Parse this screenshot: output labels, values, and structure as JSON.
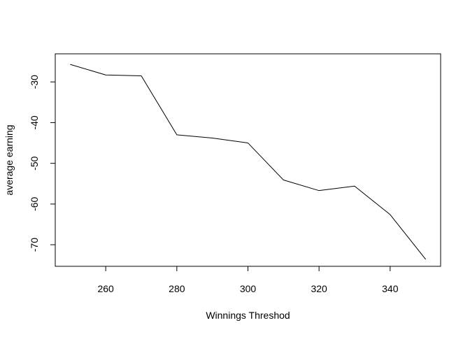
{
  "chart_data": {
    "type": "line",
    "title": "",
    "xlabel": "Winnings Threshod",
    "ylabel": "average earning",
    "x": [
      250,
      260,
      270,
      280,
      290,
      300,
      310,
      320,
      330,
      340,
      350
    ],
    "series": [
      {
        "values": [
          -25.7,
          -28.3,
          -28.5,
          -43.0,
          -43.8,
          -45.0,
          -54.1,
          -56.7,
          -55.6,
          -62.6,
          -73.6
        ]
      }
    ],
    "xlim": [
      245.8,
      354.2
    ],
    "ylim": [
      -75.3,
      -23.1
    ],
    "x_ticks": [
      260,
      280,
      300,
      320,
      340
    ],
    "y_ticks": [
      -30,
      -40,
      -50,
      -60,
      -70
    ],
    "line_color": "#000000",
    "grid": false,
    "legend": "none"
  }
}
